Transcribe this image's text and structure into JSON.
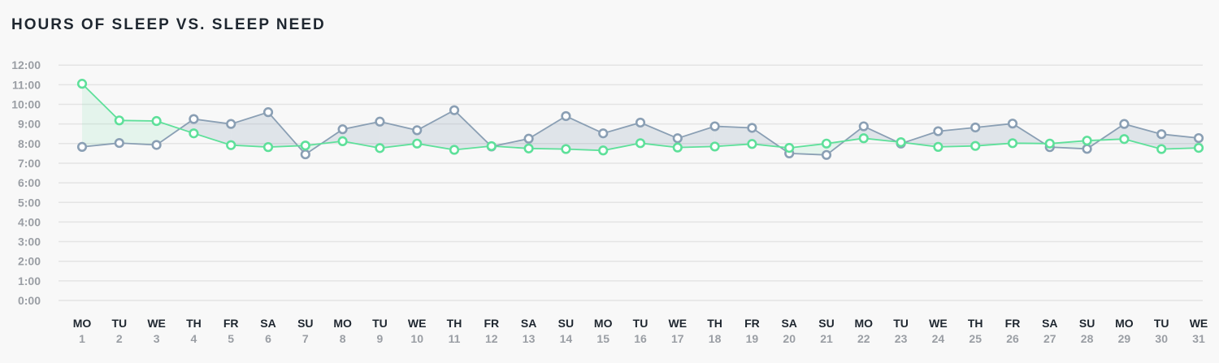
{
  "chart_data": {
    "type": "line",
    "title": "HOURS OF SLEEP VS. SLEEP NEED",
    "y_ticks": [
      "0:00",
      "1:00",
      "2:00",
      "3:00",
      "4:00",
      "5:00",
      "6:00",
      "7:00",
      "8:00",
      "9:00",
      "10:00",
      "11:00",
      "12:00"
    ],
    "ylim": [
      0,
      12
    ],
    "grid": true,
    "days_of_week": [
      "MO",
      "TU",
      "WE",
      "TH",
      "FR",
      "SA",
      "SU",
      "MO",
      "TU",
      "WE",
      "TH",
      "FR",
      "SA",
      "SU",
      "MO",
      "TU",
      "WE",
      "TH",
      "FR",
      "SA",
      "SU",
      "MO",
      "TU",
      "WE",
      "TH",
      "FR",
      "SA",
      "SU",
      "MO",
      "TU",
      "WE"
    ],
    "days_of_month": [
      "1",
      "2",
      "3",
      "4",
      "5",
      "6",
      "7",
      "8",
      "9",
      "10",
      "11",
      "12",
      "13",
      "14",
      "15",
      "16",
      "17",
      "18",
      "19",
      "20",
      "21",
      "22",
      "23",
      "24",
      "25",
      "26",
      "27",
      "28",
      "29",
      "30",
      "31"
    ],
    "series": [
      {
        "color": "#8a9fb4",
        "values": [
          7.83,
          8.03,
          7.93,
          9.25,
          9.0,
          9.6,
          7.45,
          8.73,
          9.12,
          8.68,
          9.7,
          7.85,
          8.25,
          9.4,
          8.52,
          9.07,
          8.27,
          8.88,
          8.8,
          7.5,
          7.42,
          8.88,
          8.0,
          8.63,
          8.82,
          9.02,
          7.82,
          7.73,
          9.0,
          8.48,
          8.28
        ]
      },
      {
        "color": "#5ee09a",
        "values": [
          11.05,
          9.18,
          9.15,
          8.52,
          7.92,
          7.82,
          7.9,
          8.12,
          7.77,
          8.0,
          7.68,
          7.87,
          7.75,
          7.72,
          7.65,
          8.02,
          7.8,
          7.85,
          7.98,
          7.78,
          8.0,
          8.27,
          8.07,
          7.83,
          7.88,
          8.02,
          8.0,
          8.15,
          8.23,
          7.72,
          7.78
        ]
      }
    ]
  }
}
